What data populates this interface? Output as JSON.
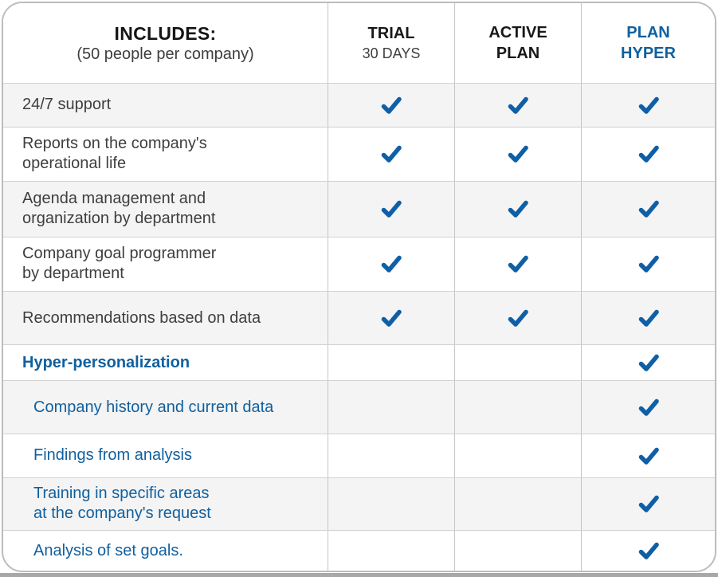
{
  "header": {
    "includes": {
      "title": "INCLUDES:",
      "subtitle": "(50 people per company)"
    },
    "plans": [
      {
        "line1": "TRIAL",
        "line2": "30 DAYS",
        "style": "trial"
      },
      {
        "line1": "ACTIVE",
        "line2": "PLAN",
        "style": "active"
      },
      {
        "line1": "PLAN",
        "line2": "HYPER",
        "style": "hyper"
      }
    ]
  },
  "rows": [
    {
      "lines": [
        "24/7 support"
      ],
      "style": "normal",
      "indent": false,
      "checks": [
        true,
        true,
        true
      ]
    },
    {
      "lines": [
        "Reports on the company's",
        "operational life"
      ],
      "style": "normal",
      "indent": false,
      "checks": [
        true,
        true,
        true
      ]
    },
    {
      "lines": [
        "Agenda management and",
        "organization by department"
      ],
      "style": "normal",
      "indent": false,
      "checks": [
        true,
        true,
        true
      ]
    },
    {
      "lines": [
        "Company goal programmer",
        "by department"
      ],
      "style": "normal",
      "indent": false,
      "checks": [
        true,
        true,
        true
      ]
    },
    {
      "lines": [
        "Recommendations based on data"
      ],
      "style": "normal",
      "indent": false,
      "checks": [
        true,
        true,
        true
      ]
    },
    {
      "lines": [
        "Hyper-personalization"
      ],
      "style": "blue-bold",
      "indent": false,
      "checks": [
        false,
        false,
        true
      ]
    },
    {
      "lines": [
        "Company history and current data"
      ],
      "style": "blue",
      "indent": true,
      "checks": [
        false,
        false,
        true
      ]
    },
    {
      "lines": [
        "Findings from analysis"
      ],
      "style": "blue",
      "indent": true,
      "checks": [
        false,
        false,
        true
      ]
    },
    {
      "lines": [
        "Training in specific areas",
        "at the company's request"
      ],
      "style": "blue",
      "indent": true,
      "checks": [
        false,
        false,
        true
      ]
    },
    {
      "lines": [
        "Analysis of set goals."
      ],
      "style": "blue",
      "indent": true,
      "checks": [
        false,
        false,
        true
      ]
    }
  ],
  "colors": {
    "accent_blue": "#10609f",
    "check_blue": "#0f5fa6",
    "row_shade": "#f4f4f4",
    "grid_vertical": "#c6c6c6",
    "grid_horizontal": "#d2d2d2",
    "card_border": "#bcbcbc",
    "bottom_bar": "#a8a8a8",
    "text_dark": "#3e3e3e"
  },
  "chart_data": {
    "type": "table",
    "title": "INCLUDES: (50 people per company)",
    "columns": [
      "INCLUDES: (50 people per company)",
      "TRIAL 30 DAYS",
      "ACTIVE PLAN",
      "PLAN HYPER"
    ],
    "rows": [
      {
        "feature": "24/7 support",
        "trial_30_days": true,
        "active_plan": true,
        "plan_hyper": true
      },
      {
        "feature": "Reports on the company's operational life",
        "trial_30_days": true,
        "active_plan": true,
        "plan_hyper": true
      },
      {
        "feature": "Agenda management and organization by department",
        "trial_30_days": true,
        "active_plan": true,
        "plan_hyper": true
      },
      {
        "feature": "Company goal programmer by department",
        "trial_30_days": true,
        "active_plan": true,
        "plan_hyper": true
      },
      {
        "feature": "Recommendations based on data",
        "trial_30_days": true,
        "active_plan": true,
        "plan_hyper": true
      },
      {
        "feature": "Hyper-personalization",
        "trial_30_days": false,
        "active_plan": false,
        "plan_hyper": true
      },
      {
        "feature": "Company history and current data",
        "trial_30_days": false,
        "active_plan": false,
        "plan_hyper": true
      },
      {
        "feature": "Findings from analysis",
        "trial_30_days": false,
        "active_plan": false,
        "plan_hyper": true
      },
      {
        "feature": "Training in specific areas at the company's request",
        "trial_30_days": false,
        "active_plan": false,
        "plan_hyper": true
      },
      {
        "feature": "Analysis of set goals.",
        "trial_30_days": false,
        "active_plan": false,
        "plan_hyper": true
      }
    ]
  }
}
